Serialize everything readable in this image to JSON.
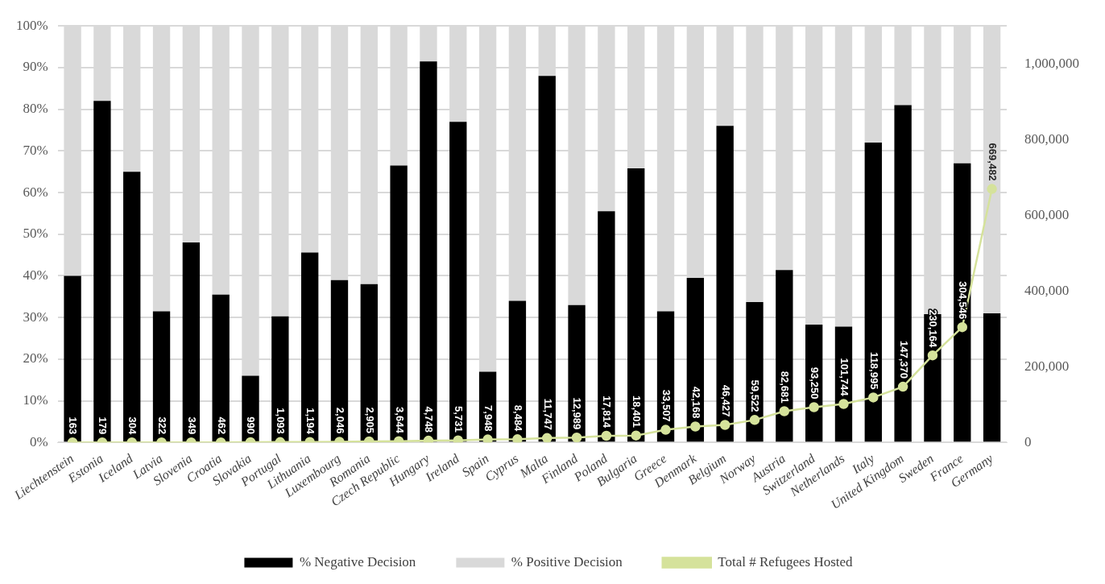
{
  "chart_data": {
    "type": "bar",
    "stacked": true,
    "categories": [
      "Liechtenstein",
      "Estonia",
      "Iceland",
      "Latvia",
      "Slovenia",
      "Croatia",
      "Slovakia",
      "Portugal",
      "Lithuania",
      "Luxembourg",
      "Romania",
      "Czech Republic",
      "Hungary",
      "Ireland",
      "Spain",
      "Cyprus",
      "Malta",
      "Finland",
      "Poland",
      "Bulgaria",
      "Greece",
      "Denmark",
      "Belgium",
      "Norway",
      "Austria",
      "Switzerland",
      "Netherlands",
      "Italy",
      "United Kingdom",
      "Sweden",
      "France",
      "Germany"
    ],
    "series": [
      {
        "name": "% Negative Decision",
        "color": "#000000",
        "values": [
          40,
          82,
          65,
          31.5,
          48,
          35.5,
          16,
          30.3,
          45.6,
          39,
          38,
          66.5,
          91.5,
          77,
          17,
          34,
          88,
          33,
          55.5,
          65.8,
          31.5,
          39.5,
          76,
          33.7,
          41.4,
          28.3,
          27.8,
          72,
          81,
          30.8,
          67,
          31
        ]
      },
      {
        "name": "% Positive Decision",
        "color": "#d9d9d9",
        "values": [
          60,
          18,
          35,
          68.5,
          52,
          64.5,
          84,
          69.7,
          54.4,
          61,
          62,
          33.5,
          8.5,
          23,
          83,
          66,
          12,
          67,
          44.5,
          34.2,
          68.5,
          60.5,
          24,
          66.3,
          58.6,
          71.7,
          72.2,
          28,
          19,
          69.2,
          33,
          69
        ]
      },
      {
        "name": "Total # Refugees Hosted",
        "type": "line",
        "axis": "y2",
        "color": "#d5e29b",
        "marker": "circle",
        "values": [
          163,
          179,
          304,
          322,
          349,
          462,
          990,
          1093,
          1194,
          2046,
          2905,
          3644,
          4748,
          5731,
          7948,
          8484,
          11747,
          12989,
          17814,
          18401,
          33507,
          42168,
          46427,
          59522,
          82681,
          93250,
          101744,
          118995,
          147370,
          230164,
          304546,
          669482
        ],
        "value_labels": [
          "163",
          "179",
          "304",
          "322",
          "349",
          "462",
          "990",
          "1,093",
          "1,194",
          "2,046",
          "2,905",
          "3,644",
          "4,748",
          "5,731",
          "7,948",
          "8,484",
          "11,747",
          "12,989",
          "17,814",
          "18,401",
          "33,507",
          "42,168",
          "46,427",
          "59,522",
          "82,681",
          "93,250",
          "101,744",
          "118,995",
          "147,370",
          "230,164",
          "304,546",
          "669,482"
        ]
      }
    ],
    "ylim": [
      0,
      100
    ],
    "yticks": [
      {
        "value": 0,
        "label": "0%"
      },
      {
        "value": 10,
        "label": "10%"
      },
      {
        "value": 20,
        "label": "20%"
      },
      {
        "value": 30,
        "label": "30%"
      },
      {
        "value": 40,
        "label": "40%"
      },
      {
        "value": 50,
        "label": "50%"
      },
      {
        "value": 60,
        "label": "60%"
      },
      {
        "value": 70,
        "label": "70%"
      },
      {
        "value": 80,
        "label": "80%"
      },
      {
        "value": 90,
        "label": "90%"
      },
      {
        "value": 100,
        "label": "100%"
      }
    ],
    "y2lim": [
      0,
      1100000
    ],
    "y2ticks": [
      {
        "value": 0,
        "label": "0"
      },
      {
        "value": 200000,
        "label": "200,000"
      },
      {
        "value": 400000,
        "label": "400,000"
      },
      {
        "value": 600000,
        "label": "600,000"
      },
      {
        "value": 800000,
        "label": "800,000"
      },
      {
        "value": 1000000,
        "label": "1,000,000"
      }
    ],
    "grid": "y",
    "legend": "bottom"
  }
}
